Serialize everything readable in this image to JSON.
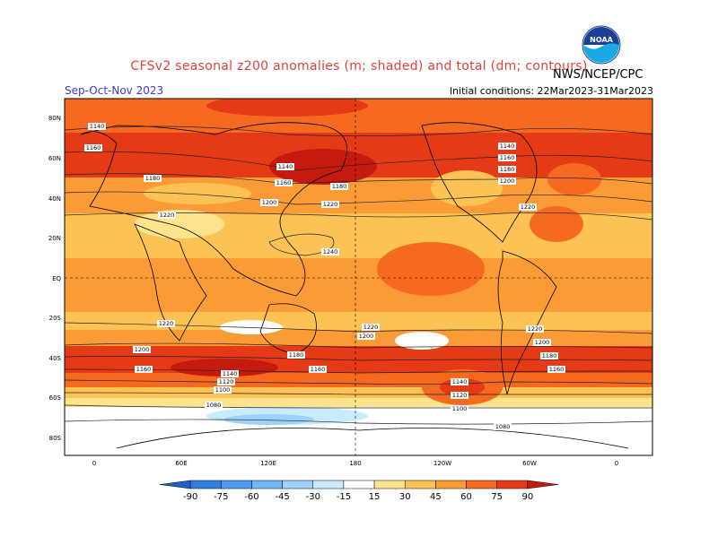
{
  "header": {
    "title": "CFSv2 seasonal z200 anomalies (m; shaded) and total (dm; contours)",
    "season": "Sep-Oct-Nov 2023",
    "initial_conditions": "Initial conditions: 22Mar2023-31Mar2023",
    "agency": "NWS/NCEP/CPC",
    "logo_text": "NOAA"
  },
  "map": {
    "lat_labels": [
      "80N",
      "60N",
      "40N",
      "20N",
      "EQ",
      "20S",
      "40S",
      "60S",
      "80S"
    ],
    "lon_labels": [
      "0",
      "60E",
      "120E",
      "180",
      "120W",
      "60W",
      "0"
    ],
    "contour_labels": [
      {
        "text": "1140",
        "region": "north-atlantic-west"
      },
      {
        "text": "1160",
        "region": "north-america-west"
      },
      {
        "text": "1180",
        "region": "north-atlantic"
      },
      {
        "text": "1220",
        "region": "north-africa"
      },
      {
        "text": "1140",
        "region": "east-asia"
      },
      {
        "text": "1160",
        "region": "japan"
      },
      {
        "text": "1180",
        "region": "north-pacific-west"
      },
      {
        "text": "1200",
        "region": "north-pacific-west"
      },
      {
        "text": "1220",
        "region": "north-pacific"
      },
      {
        "text": "1240",
        "region": "tropical-pacific"
      },
      {
        "text": "1140",
        "region": "north-america-east"
      },
      {
        "text": "1160",
        "region": "north-america-east"
      },
      {
        "text": "1180",
        "region": "north-america-east"
      },
      {
        "text": "1200",
        "region": "north-america-east"
      },
      {
        "text": "1220",
        "region": "north-atlantic-south"
      },
      {
        "text": "1220",
        "region": "indian-ocean"
      },
      {
        "text": "1200",
        "region": "indian-ocean-south"
      },
      {
        "text": "1180",
        "region": "australia-south"
      },
      {
        "text": "1160",
        "region": "indian-ocean-far-south"
      },
      {
        "text": "1160",
        "region": "new-zealand"
      },
      {
        "text": "1140",
        "region": "southern-ocean-indian"
      },
      {
        "text": "1120",
        "region": "southern-ocean-indian"
      },
      {
        "text": "1100",
        "region": "southern-ocean-indian"
      },
      {
        "text": "1080",
        "region": "antarctica-coast"
      },
      {
        "text": "1220",
        "region": "south-pacific-central"
      },
      {
        "text": "1200",
        "region": "south-pacific-central"
      },
      {
        "text": "1140",
        "region": "south-pacific-east"
      },
      {
        "text": "1120",
        "region": "south-pacific-east"
      },
      {
        "text": "1100",
        "region": "south-pacific-east"
      },
      {
        "text": "1220",
        "region": "south-atlantic"
      },
      {
        "text": "1200",
        "region": "south-atlantic"
      },
      {
        "text": "1180",
        "region": "south-atlantic"
      },
      {
        "text": "1160",
        "region": "south-atlantic"
      },
      {
        "text": "1080",
        "region": "antarctic-peninsula"
      }
    ]
  },
  "colorbar": {
    "ticks": [
      "-90",
      "-75",
      "-60",
      "-45",
      "-30",
      "-15",
      "15",
      "30",
      "45",
      "60",
      "75",
      "90"
    ],
    "colors": [
      "#1e62c8",
      "#2f7fe0",
      "#4c9bf0",
      "#74b7f6",
      "#9ed2fa",
      "#c8ecfc",
      "#ffffff",
      "#fde38c",
      "#fcc254",
      "#fb9b36",
      "#f56a20",
      "#e53a16",
      "#c41a10"
    ]
  }
}
